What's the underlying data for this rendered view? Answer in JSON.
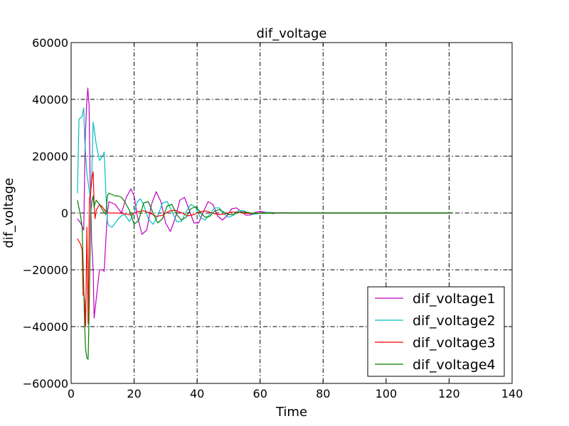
{
  "chart_data": {
    "type": "line",
    "title": "dif_voltage",
    "xlabel": "Time",
    "ylabel": "dif_voltage",
    "xlim": [
      0,
      140
    ],
    "ylim": [
      -60000,
      60000
    ],
    "xticks": [
      0,
      20,
      40,
      60,
      80,
      100,
      120,
      140
    ],
    "yticks": [
      -60000,
      -40000,
      -20000,
      0,
      20000,
      40000,
      60000
    ],
    "x_tick_labels": [
      "0",
      "20",
      "40",
      "60",
      "80",
      "100",
      "120",
      "140"
    ],
    "y_tick_labels": [
      "−60000",
      "−40000",
      "−20000",
      "0",
      "20000",
      "40000",
      "60000"
    ],
    "grid": true,
    "legend_position": "lower-right",
    "series": [
      {
        "name": "dif_voltage1",
        "color": "#bf00bf",
        "points": [
          [
            2,
            -2000
          ],
          [
            3,
            -3500
          ],
          [
            4,
            -6000
          ],
          [
            4.5,
            27000
          ],
          [
            5,
            40000
          ],
          [
            5.3,
            44000
          ],
          [
            5.7,
            38000
          ],
          [
            6,
            14000
          ],
          [
            6.5,
            -10000
          ],
          [
            7,
            -20000
          ],
          [
            7.3,
            -37000
          ],
          [
            8,
            -30000
          ],
          [
            9,
            -20000
          ],
          [
            10,
            -20000
          ],
          [
            10.5,
            -20500
          ],
          [
            11,
            -10000
          ],
          [
            11.5,
            0
          ],
          [
            12,
            4000
          ],
          [
            14,
            3000
          ],
          [
            16,
            0
          ],
          [
            17.5,
            5500
          ],
          [
            19,
            8500
          ],
          [
            20,
            6000
          ],
          [
            21,
            -1000
          ],
          [
            22.5,
            -7500
          ],
          [
            24,
            -6000
          ],
          [
            25.5,
            3000
          ],
          [
            27,
            7500
          ],
          [
            28.5,
            4000
          ],
          [
            30,
            -3500
          ],
          [
            31.5,
            -6500
          ],
          [
            33,
            -2000
          ],
          [
            34.5,
            4500
          ],
          [
            36,
            5500
          ],
          [
            37.5,
            1000
          ],
          [
            39,
            -3500
          ],
          [
            40.5,
            -3500
          ],
          [
            42,
            500
          ],
          [
            43.5,
            4000
          ],
          [
            45,
            3000
          ],
          [
            46.5,
            -1000
          ],
          [
            48,
            -2500
          ],
          [
            49.5,
            -1000
          ],
          [
            51,
            1500
          ],
          [
            52.5,
            1800
          ],
          [
            54,
            500
          ],
          [
            55.5,
            -800
          ],
          [
            57,
            -700
          ],
          [
            58.5,
            200
          ],
          [
            60,
            600
          ],
          [
            62,
            200
          ],
          [
            64,
            -200
          ],
          [
            66,
            100
          ],
          [
            70,
            0
          ],
          [
            80,
            0
          ],
          [
            100,
            0
          ],
          [
            121,
            0
          ]
        ]
      },
      {
        "name": "dif_voltage2",
        "color": "#00bfbf",
        "points": [
          [
            2,
            7000
          ],
          [
            2.5,
            33000
          ],
          [
            3.5,
            34000
          ],
          [
            4,
            37000
          ],
          [
            4.3,
            26000
          ],
          [
            5,
            14000
          ],
          [
            5.5,
            10000
          ],
          [
            6,
            6000
          ],
          [
            6.5,
            12000
          ],
          [
            7,
            32000
          ],
          [
            8,
            24000
          ],
          [
            9,
            18500
          ],
          [
            10,
            20000
          ],
          [
            10.5,
            21500
          ],
          [
            11,
            8000
          ],
          [
            11.5,
            -3000
          ],
          [
            12,
            -4500
          ],
          [
            13,
            -5000
          ],
          [
            14,
            -3500
          ],
          [
            15,
            -2000
          ],
          [
            16,
            -1000
          ],
          [
            17,
            -500
          ],
          [
            18.5,
            -3000
          ],
          [
            20,
            0
          ],
          [
            21,
            4000
          ],
          [
            22,
            5000
          ],
          [
            23,
            3000
          ],
          [
            24.5,
            -2000
          ],
          [
            26,
            -4000
          ],
          [
            27.5,
            -1000
          ],
          [
            29,
            3500
          ],
          [
            30.5,
            4000
          ],
          [
            32,
            500
          ],
          [
            33.5,
            -3000
          ],
          [
            35,
            -3000
          ],
          [
            36.5,
            500
          ],
          [
            38,
            3000
          ],
          [
            39.5,
            2000
          ],
          [
            41,
            -1500
          ],
          [
            42.5,
            -2500
          ],
          [
            44,
            -500
          ],
          [
            45.5,
            1800
          ],
          [
            47,
            1800
          ],
          [
            48.5,
            -300
          ],
          [
            50,
            -1500
          ],
          [
            51.5,
            -800
          ],
          [
            53,
            700
          ],
          [
            54.5,
            900
          ],
          [
            56,
            100
          ],
          [
            57.5,
            -500
          ],
          [
            59,
            -300
          ],
          [
            61,
            200
          ],
          [
            63,
            200
          ],
          [
            66,
            0
          ],
          [
            70,
            0
          ],
          [
            80,
            0
          ],
          [
            100,
            0
          ],
          [
            121,
            0
          ]
        ]
      },
      {
        "name": "dif_voltage3",
        "color": "#ff0000",
        "points": [
          [
            2,
            -9000
          ],
          [
            3,
            -11000
          ],
          [
            3.5,
            -13000
          ],
          [
            3.8,
            -29000
          ],
          [
            4,
            -28000
          ],
          [
            4.3,
            -31000
          ],
          [
            4.6,
            -40000
          ],
          [
            5,
            -5000
          ],
          [
            5.4,
            -39000
          ],
          [
            5.8,
            5000
          ],
          [
            6.2,
            7000
          ],
          [
            6.6,
            12000
          ],
          [
            7,
            14500
          ],
          [
            7.3,
            3000
          ],
          [
            7.6,
            -2000
          ],
          [
            8,
            1000
          ],
          [
            9,
            3000
          ],
          [
            10,
            2000
          ],
          [
            11,
            500
          ],
          [
            12,
            0
          ],
          [
            13,
            0
          ],
          [
            15,
            0
          ],
          [
            17,
            -300
          ],
          [
            19,
            -700
          ],
          [
            21,
            500
          ],
          [
            23,
            800
          ],
          [
            25,
            0
          ],
          [
            27,
            -1200
          ],
          [
            29,
            -800
          ],
          [
            31,
            600
          ],
          [
            33,
            1000
          ],
          [
            35,
            100
          ],
          [
            37,
            -1000
          ],
          [
            39,
            -600
          ],
          [
            41,
            500
          ],
          [
            43,
            700
          ],
          [
            45,
            -100
          ],
          [
            47,
            -600
          ],
          [
            49,
            -300
          ],
          [
            51,
            300
          ],
          [
            53,
            300
          ],
          [
            55,
            -100
          ],
          [
            57,
            -200
          ],
          [
            60,
            0
          ],
          [
            65,
            0
          ],
          [
            70,
            0
          ],
          [
            80,
            0
          ],
          [
            100,
            0
          ],
          [
            121,
            0
          ]
        ]
      },
      {
        "name": "dif_voltage4",
        "color": "#007f00",
        "points": [
          [
            2,
            4500
          ],
          [
            3,
            -1000
          ],
          [
            3.5,
            -5000
          ],
          [
            4,
            -26000
          ],
          [
            4.3,
            -40000
          ],
          [
            4.6,
            -48000
          ],
          [
            5,
            -51000
          ],
          [
            5.4,
            -51500
          ],
          [
            5.8,
            -30000
          ],
          [
            6.2,
            0
          ],
          [
            6.6,
            4000
          ],
          [
            7,
            6000
          ],
          [
            7.3,
            2000
          ],
          [
            7.6,
            3500
          ],
          [
            8,
            4500
          ],
          [
            9,
            3000
          ],
          [
            10,
            1000
          ],
          [
            11,
            -500
          ],
          [
            11.5,
            6000
          ],
          [
            12,
            7000
          ],
          [
            13,
            6500
          ],
          [
            14,
            6000
          ],
          [
            15,
            6000
          ],
          [
            16,
            5500
          ],
          [
            17,
            4000
          ],
          [
            18.5,
            1000
          ],
          [
            20,
            -4000
          ],
          [
            21.5,
            -2500
          ],
          [
            23,
            3500
          ],
          [
            24.5,
            4000
          ],
          [
            26,
            0
          ],
          [
            27.5,
            -3500
          ],
          [
            29,
            -2000
          ],
          [
            30.5,
            2500
          ],
          [
            32,
            3000
          ],
          [
            33.5,
            -500
          ],
          [
            35,
            -2500
          ],
          [
            36.5,
            -1500
          ],
          [
            38,
            1500
          ],
          [
            39.5,
            2200
          ],
          [
            41,
            300
          ],
          [
            42.5,
            -1500
          ],
          [
            44,
            -1200
          ],
          [
            45.5,
            600
          ],
          [
            47,
            1200
          ],
          [
            48.5,
            300
          ],
          [
            50,
            -600
          ],
          [
            51.5,
            -500
          ],
          [
            53,
            200
          ],
          [
            55,
            400
          ],
          [
            57,
            0
          ],
          [
            60,
            -100
          ],
          [
            65,
            0
          ],
          [
            70,
            0
          ],
          [
            80,
            0
          ],
          [
            100,
            0
          ],
          [
            121,
            0
          ]
        ]
      }
    ]
  }
}
